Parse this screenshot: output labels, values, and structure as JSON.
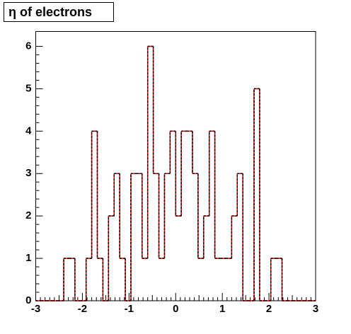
{
  "chart_data": {
    "type": "histogram",
    "title": "η of electrons",
    "bins": [
      -3,
      -2.88,
      -2.76,
      -2.64,
      -2.52,
      -2.4,
      -2.28,
      -2.16,
      -2.04,
      -1.92,
      -1.8,
      -1.68,
      -1.56,
      -1.44,
      -1.32,
      -1.2,
      -1.08,
      -0.96,
      -0.84,
      -0.72,
      -0.6,
      -0.48,
      -0.36,
      -0.24,
      -0.12,
      0,
      0.12,
      0.24,
      0.36,
      0.48,
      0.6,
      0.72,
      0.84,
      0.96,
      1.08,
      1.2,
      1.32,
      1.44,
      1.56,
      1.68,
      1.8,
      1.92,
      2.04,
      2.16,
      2.28,
      2.4,
      2.52,
      2.64,
      2.76,
      2.88,
      3
    ],
    "values": [
      0,
      0,
      0,
      0,
      0,
      1,
      1,
      0,
      0,
      1,
      4,
      1,
      0,
      2,
      3,
      1,
      0,
      3,
      3,
      1,
      6,
      3,
      1,
      3,
      4,
      2,
      4,
      4,
      3,
      1,
      2,
      4,
      1,
      1,
      1,
      2,
      3,
      0,
      0,
      5,
      0,
      0,
      1,
      1,
      0,
      0,
      0,
      0,
      0,
      0
    ],
    "color": "#ff0000",
    "overlay_color": "#000000",
    "xlim": [
      -3,
      3
    ],
    "xticks": [
      -3,
      -2,
      -1,
      0,
      1,
      2,
      3
    ],
    "ylim": [
      0,
      6.35
    ],
    "yticks": [
      0,
      1,
      2,
      3,
      4,
      5,
      6
    ]
  }
}
